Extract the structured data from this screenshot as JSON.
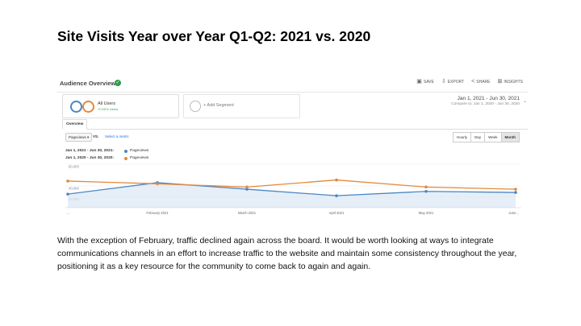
{
  "slide": {
    "title": "Site Visits Year over Year Q1-Q2: 2021 vs. 2020",
    "body": "With the exception of February, traffic declined again across the board. It would be worth looking at ways to integrate communications channels in an effort to increase traffic to the website and maintain some consistency throughout the year, positioning it as a key resource for the community to come back to again and again."
  },
  "app": {
    "title": "Audience Overview",
    "actions": [
      {
        "label": "SAVE",
        "icon": "save-icon"
      },
      {
        "label": "EXPORT",
        "icon": "export-icon"
      },
      {
        "label": "SHARE",
        "icon": "share-icon"
      },
      {
        "label": "INSIGHTS",
        "icon": "insights-icon"
      }
    ]
  },
  "segments": {
    "primary_name": "All Users",
    "primary_pct": "+0.00% Users",
    "add_label": "+ Add Segment"
  },
  "date_range": {
    "main": "Jan 1, 2021 - Jun 30, 2021",
    "compare": "Compare to: Jan 1, 2020 - Jun 30, 2020"
  },
  "tabs": {
    "overview": "Overview"
  },
  "controls": {
    "metric": "Pageviews",
    "vs": "VS.",
    "select_metric": "Select a metric",
    "granularity": [
      "Hourly",
      "Day",
      "Week",
      "Month"
    ],
    "active_granularity": "Month"
  },
  "legend": [
    {
      "date": "Jan 1, 2021 - Jun 30, 2021:",
      "metric": "Pageviews",
      "color": "#4a86c5"
    },
    {
      "date": "Jan 1, 2020 - Jun 30, 2020:",
      "metric": "Pageviews",
      "color": "#e08a3c"
    }
  ],
  "chart_data": {
    "type": "line",
    "categories": [
      "...",
      "February 2021",
      "March 2021",
      "April 2021",
      "May 2021",
      "June..."
    ],
    "y_tick_labels": [
      "80,000",
      "40,000",
      "20,000"
    ],
    "ylim": [
      0,
      80000
    ],
    "grid": true,
    "series": [
      {
        "name": "Jan 1, 2021 - Jun 30, 2021: Pageviews",
        "color": "#4a86c5",
        "values": [
          25000,
          46000,
          34000,
          22000,
          30000,
          28000
        ],
        "fill": true
      },
      {
        "name": "Jan 1, 2020 - Jun 30, 2020: Pageviews",
        "color": "#e08a3c",
        "values": [
          49000,
          44000,
          38000,
          51000,
          38000,
          34000
        ],
        "fill": false
      }
    ]
  }
}
